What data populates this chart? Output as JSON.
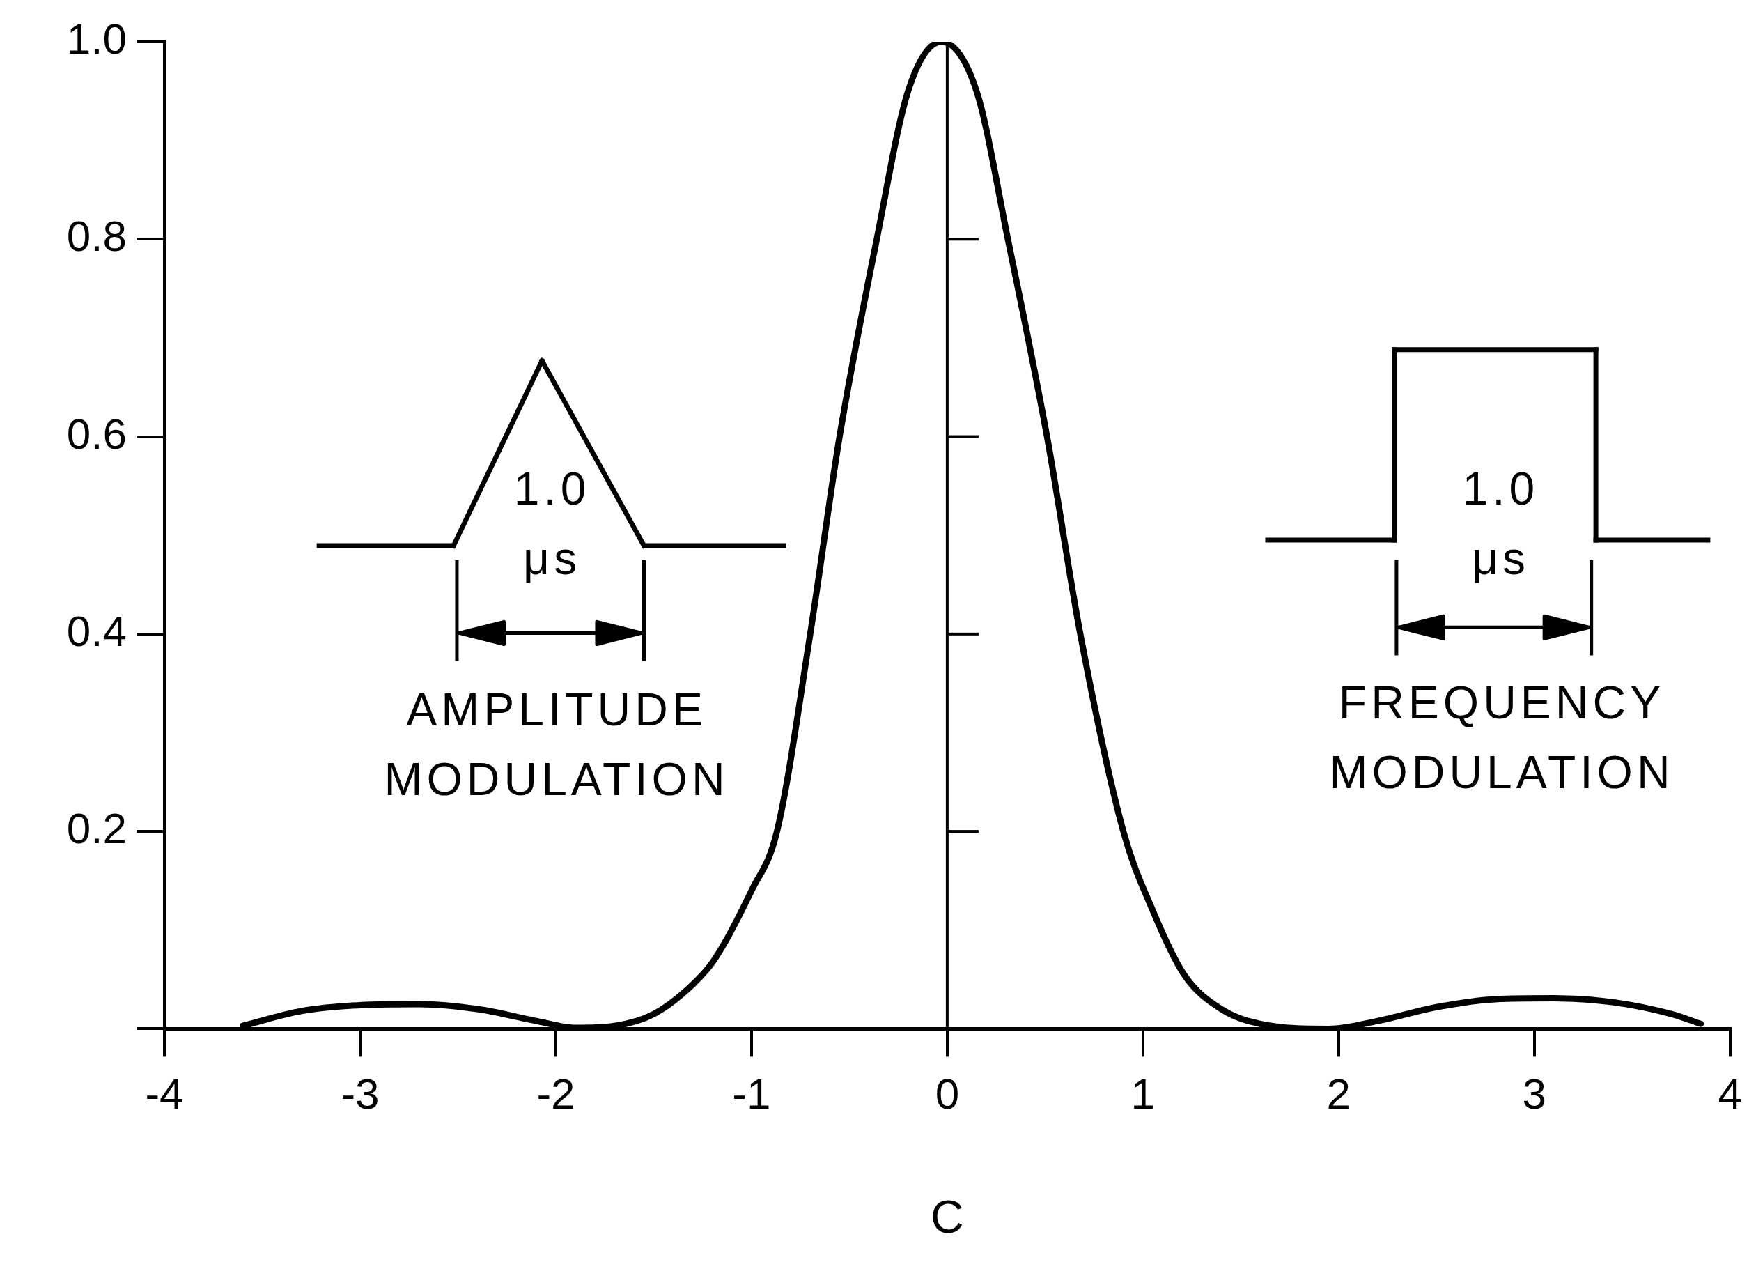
{
  "chart_data": {
    "type": "line",
    "xlabel": "C",
    "x": [
      -3.6,
      -3.3,
      -3.0,
      -2.7,
      -2.4,
      -2.1,
      -1.9,
      -1.7,
      -1.5,
      -1.3,
      -1.19,
      -1.0,
      -0.87,
      -0.7,
      -0.55,
      -0.36,
      -0.2,
      -0.03,
      0.15,
      0.31,
      0.51,
      0.68,
      0.9,
      1.05,
      1.21,
      1.4,
      1.6,
      1.95,
      2.2,
      2.5,
      2.8,
      3.1,
      3.4,
      3.7,
      3.85
    ],
    "series": [
      {
        "color": "#000000",
        "values": [
          0.003,
          0.018,
          0.024,
          0.025,
          0.02,
          0.008,
          0.001,
          0.003,
          0.015,
          0.045,
          0.07,
          0.14,
          0.2,
          0.4,
          0.6,
          0.8,
          0.95,
          1.0,
          0.95,
          0.8,
          0.6,
          0.4,
          0.2,
          0.12,
          0.055,
          0.02,
          0.005,
          0.0,
          0.008,
          0.022,
          0.03,
          0.031,
          0.027,
          0.015,
          0.005
        ]
      }
    ],
    "xlim": [
      -4,
      4
    ],
    "xticks": [
      -4,
      -3,
      -2,
      -1,
      0,
      1,
      2,
      3,
      4
    ],
    "ylim": [
      0,
      1.0
    ],
    "yticks": [
      {
        "value": 0,
        "label": null
      },
      0.2,
      0.4,
      0.6,
      0.8,
      {
        "value": 1.0,
        "label": "1.0"
      }
    ],
    "grid": false,
    "legend": false,
    "marker": "none",
    "line_style": "solid",
    "ref_lines": [
      {
        "axis": "x",
        "value": 0,
        "color": "#000000"
      }
    ],
    "annotations": [
      "1.0 μs",
      "AMPLITUDE MODULATION",
      "1.0 μs",
      "FREQUENCY MODULATION"
    ]
  }
}
